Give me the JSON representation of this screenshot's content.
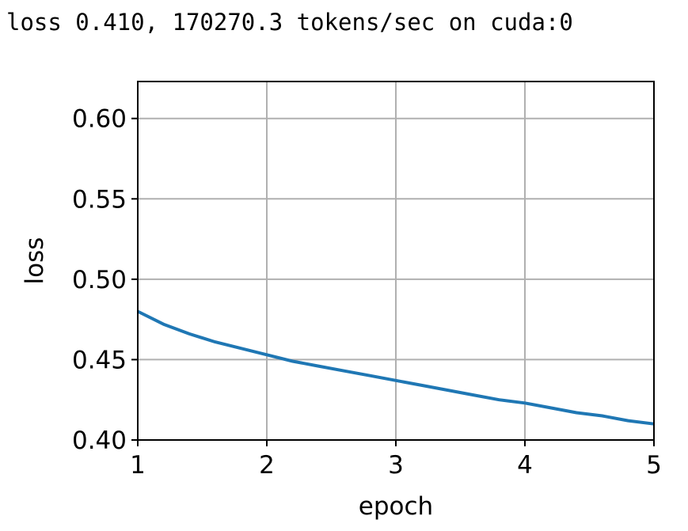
{
  "status_line": "loss 0.410, 170270.3 tokens/sec on cuda:0",
  "chart_data": {
    "type": "line",
    "title": "",
    "xlabel": "epoch",
    "ylabel": "loss",
    "xlim": [
      1,
      5
    ],
    "ylim": [
      0.4,
      0.623
    ],
    "xticks": [
      1,
      2,
      3,
      4,
      5
    ],
    "xtick_labels": [
      "1",
      "2",
      "3",
      "4",
      "5"
    ],
    "yticks": [
      0.4,
      0.45,
      0.5,
      0.55,
      0.6
    ],
    "ytick_labels": [
      "0.40",
      "0.45",
      "0.50",
      "0.55",
      "0.60"
    ],
    "grid": true,
    "legend": "none",
    "series": [
      {
        "color": "#1f77b4",
        "x": [
          1.0,
          1.2,
          1.4,
          1.6,
          1.8,
          2.0,
          2.2,
          2.4,
          2.6,
          2.8,
          3.0,
          3.2,
          3.4,
          3.6,
          3.8,
          4.0,
          4.2,
          4.4,
          4.6,
          4.8,
          5.0
        ],
        "y": [
          0.48,
          0.472,
          0.466,
          0.461,
          0.457,
          0.453,
          0.449,
          0.446,
          0.443,
          0.44,
          0.437,
          0.434,
          0.431,
          0.428,
          0.425,
          0.423,
          0.42,
          0.417,
          0.415,
          0.412,
          0.41
        ]
      }
    ]
  }
}
